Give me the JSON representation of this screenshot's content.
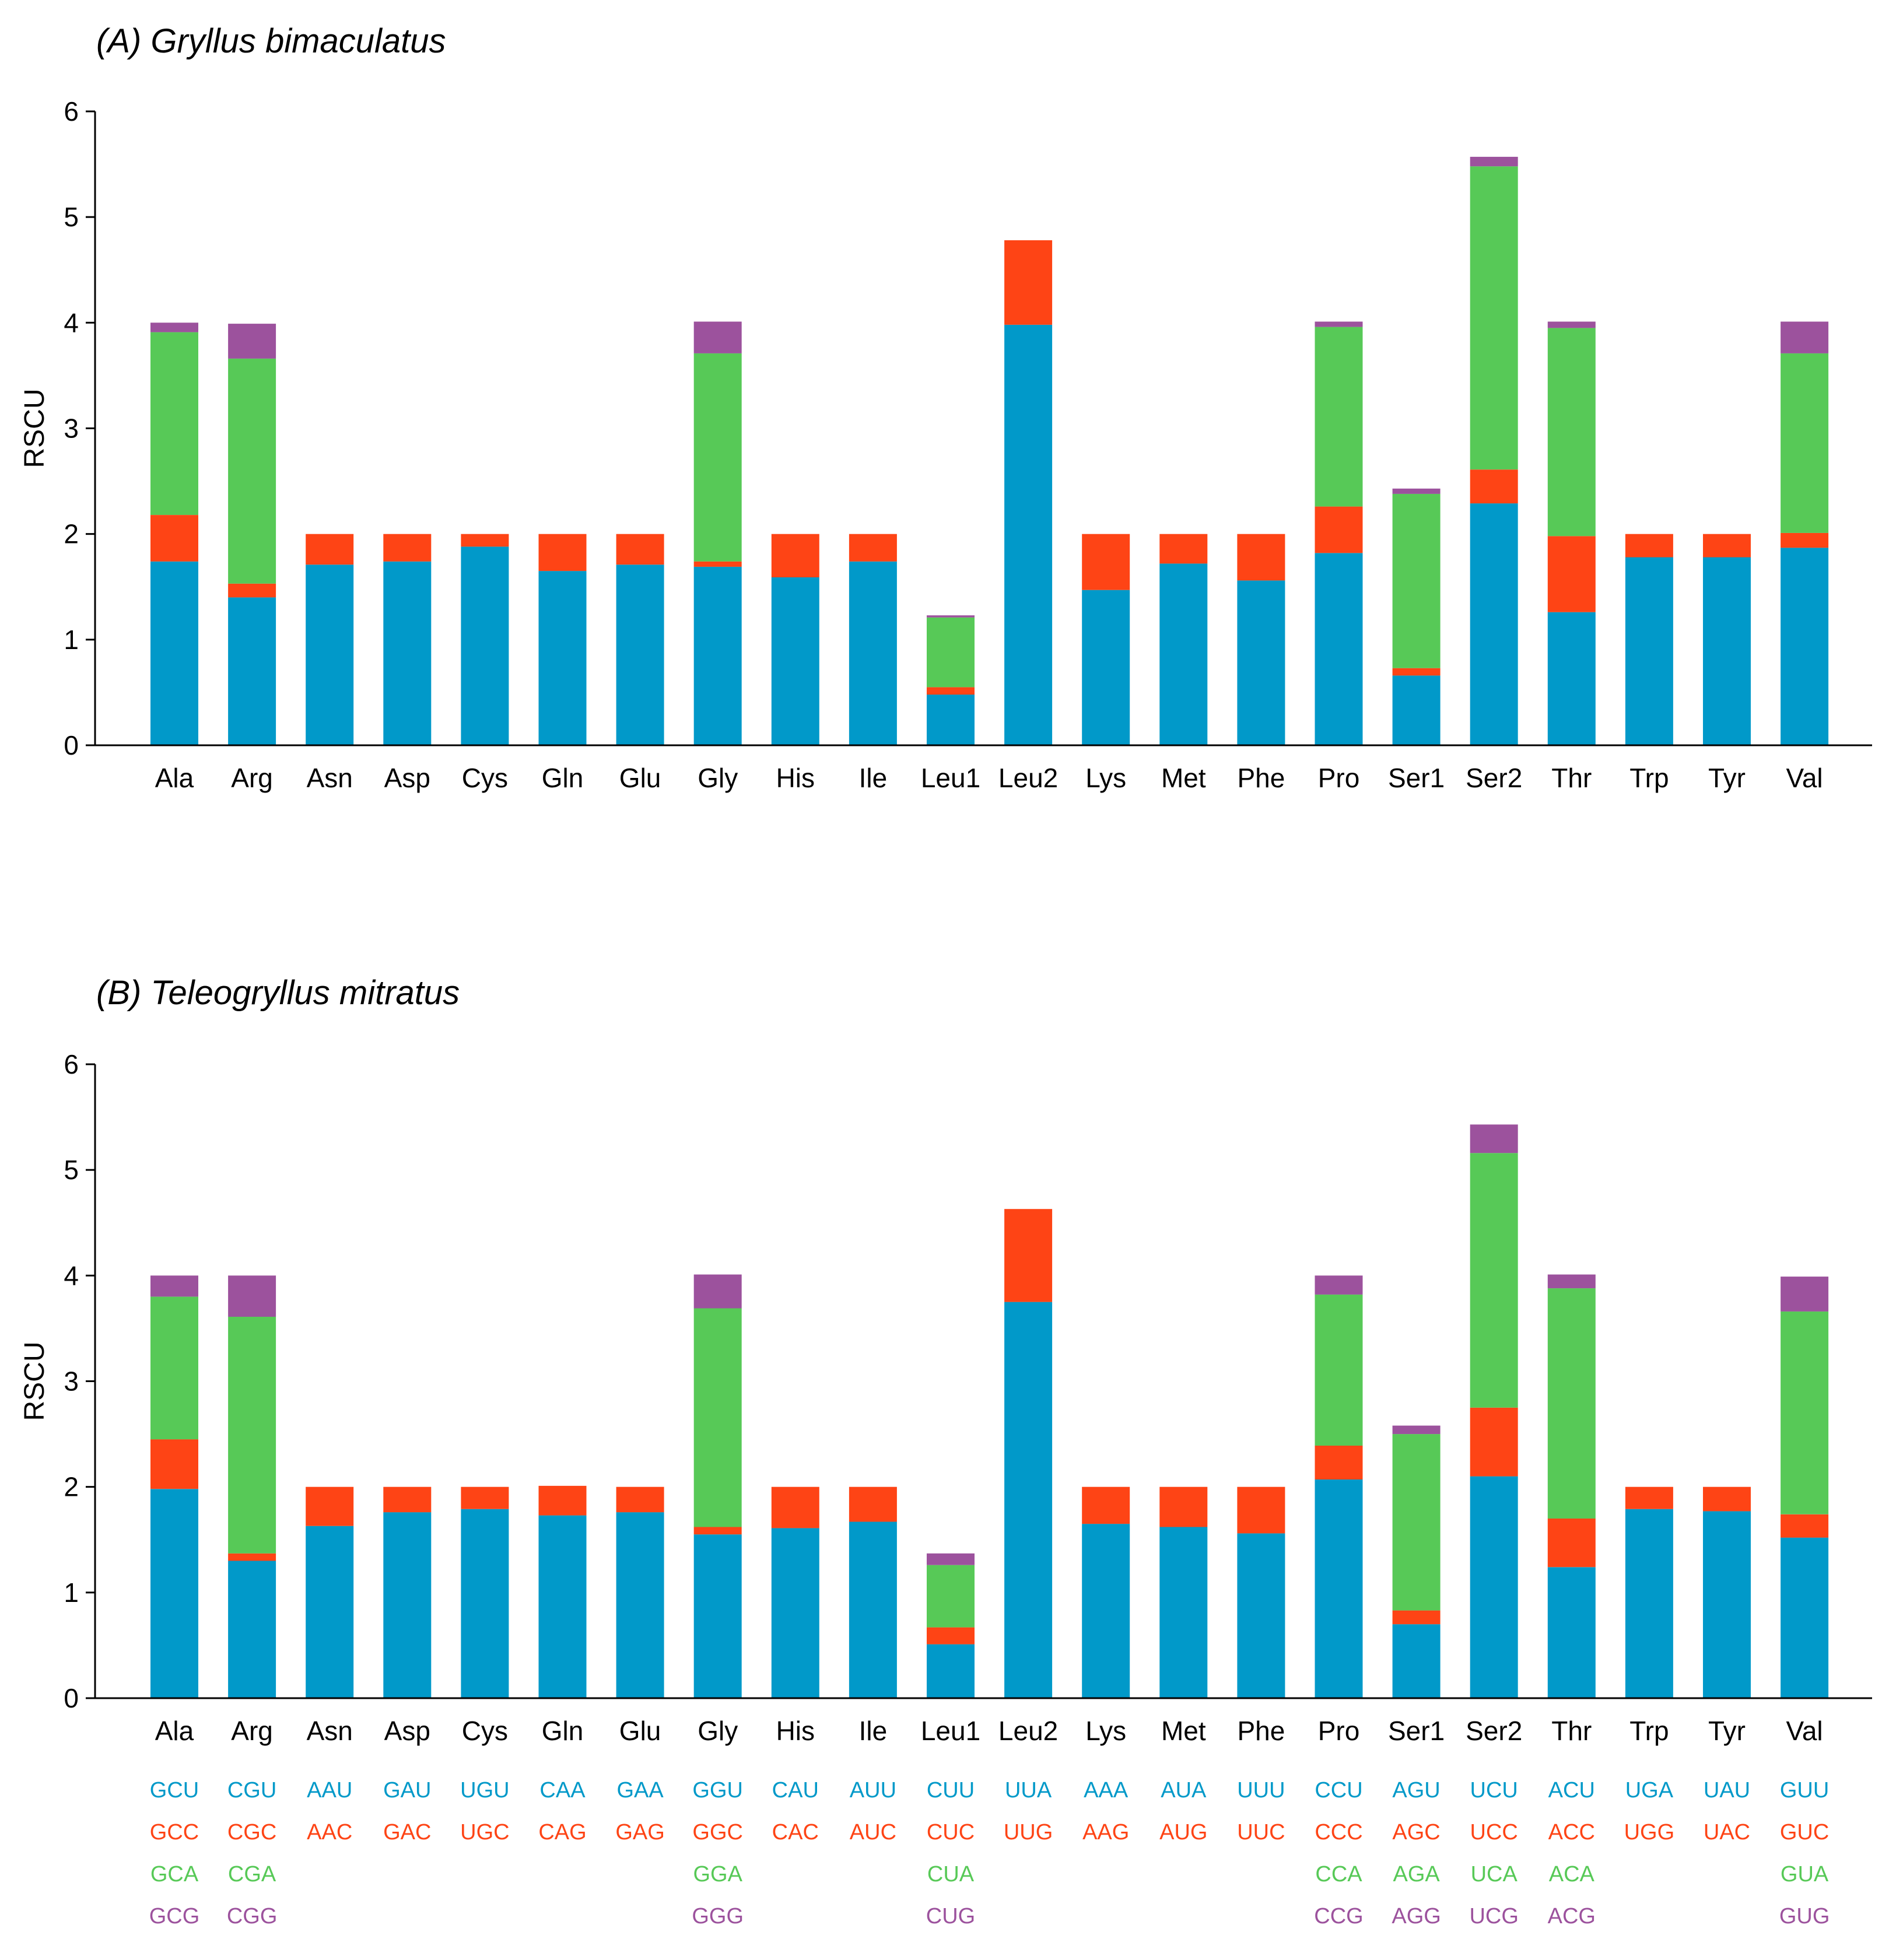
{
  "colors": {
    "blue": "#0199C9",
    "red": "#FE4415",
    "green": "#57C957",
    "purple": "#9C529D",
    "axis": "#000000"
  },
  "chart_data": [
    {
      "type": "bar",
      "stacked": true,
      "title": "(A) Gryllus bimaculatus",
      "ylabel": "RSCU",
      "xlabel": "",
      "ylim": [
        0,
        6
      ],
      "yticks": [
        "0",
        "1",
        "2",
        "3",
        "4",
        "5",
        "6"
      ],
      "grid": false,
      "categories": [
        "Ala",
        "Arg",
        "Asn",
        "Asp",
        "Cys",
        "Gln",
        "Glu",
        "Gly",
        "His",
        "Ile",
        "Leu1",
        "Leu2",
        "Lys",
        "Met",
        "Phe",
        "Pro",
        "Ser1",
        "Ser2",
        "Thr",
        "Trp",
        "Tyr",
        "Val"
      ],
      "series": [
        {
          "values": [
            1.74,
            1.4,
            1.71,
            1.74,
            1.88,
            1.65,
            1.71,
            1.69,
            1.59,
            1.74,
            0.48,
            3.98,
            1.47,
            1.72,
            1.56,
            1.82,
            0.66,
            2.29,
            1.26,
            1.78,
            1.78,
            1.87
          ]
        },
        {
          "values": [
            0.44,
            0.13,
            0.29,
            0.26,
            0.12,
            0.35,
            0.29,
            0.05,
            0.41,
            0.26,
            0.07,
            0.8,
            0.53,
            0.28,
            0.44,
            0.44,
            0.07,
            0.32,
            0.72,
            0.22,
            0.22,
            0.14
          ]
        },
        {
          "values": [
            1.73,
            2.13,
            0,
            0,
            0,
            0,
            0,
            1.97,
            0,
            0,
            0.66,
            0,
            0,
            0,
            0,
            1.7,
            1.65,
            2.87,
            1.97,
            0,
            0,
            1.7
          ]
        },
        {
          "values": [
            0.09,
            0.33,
            0,
            0,
            0,
            0,
            0,
            0.3,
            0,
            0,
            0.02,
            0,
            0,
            0,
            0,
            0.05,
            0.05,
            0.09,
            0.06,
            0,
            0,
            0.3
          ]
        }
      ]
    },
    {
      "type": "bar",
      "stacked": true,
      "title": "(B) Teleogryllus mitratus",
      "ylabel": "RSCU",
      "xlabel": "",
      "ylim": [
        0,
        6
      ],
      "yticks": [
        "0",
        "1",
        "2",
        "3",
        "4",
        "5",
        "6"
      ],
      "grid": false,
      "categories": [
        "Ala",
        "Arg",
        "Asn",
        "Asp",
        "Cys",
        "Gln",
        "Glu",
        "Gly",
        "His",
        "Ile",
        "Leu1",
        "Leu2",
        "Lys",
        "Met",
        "Phe",
        "Pro",
        "Ser1",
        "Ser2",
        "Thr",
        "Trp",
        "Tyr",
        "Val"
      ],
      "series": [
        {
          "values": [
            1.98,
            1.3,
            1.63,
            1.76,
            1.79,
            1.73,
            1.76,
            1.55,
            1.61,
            1.67,
            0.51,
            3.75,
            1.65,
            1.62,
            1.56,
            2.07,
            0.7,
            2.1,
            1.24,
            1.79,
            1.77,
            1.52
          ]
        },
        {
          "values": [
            0.47,
            0.07,
            0.37,
            0.24,
            0.21,
            0.28,
            0.24,
            0.07,
            0.39,
            0.33,
            0.16,
            0.88,
            0.35,
            0.38,
            0.44,
            0.32,
            0.13,
            0.65,
            0.46,
            0.21,
            0.23,
            0.22
          ]
        },
        {
          "values": [
            1.35,
            2.24,
            0,
            0,
            0,
            0,
            0,
            2.07,
            0,
            0,
            0.59,
            0,
            0,
            0,
            0,
            1.43,
            1.67,
            2.41,
            2.18,
            0,
            0,
            1.92
          ]
        },
        {
          "values": [
            0.2,
            0.39,
            0,
            0,
            0,
            0,
            0,
            0.32,
            0,
            0,
            0.11,
            0,
            0,
            0,
            0,
            0.18,
            0.08,
            0.27,
            0.13,
            0,
            0,
            0.33
          ]
        }
      ]
    }
  ],
  "codon_legend": {
    "rows": [
      {
        "color": "blue",
        "codons": [
          "GCU",
          "CGU",
          "AAU",
          "GAU",
          "UGU",
          "CAA",
          "GAA",
          "GGU",
          "CAU",
          "AUU",
          "CUU",
          "UUA",
          "AAA",
          "AUA",
          "UUU",
          "CCU",
          "AGU",
          "UCU",
          "ACU",
          "UGA",
          "UAU",
          "GUU"
        ]
      },
      {
        "color": "red",
        "codons": [
          "GCC",
          "CGC",
          "AAC",
          "GAC",
          "UGC",
          "CAG",
          "GAG",
          "GGC",
          "CAC",
          "AUC",
          "CUC",
          "UUG",
          "AAG",
          "AUG",
          "UUC",
          "CCC",
          "AGC",
          "UCC",
          "ACC",
          "UGG",
          "UAC",
          "GUC"
        ]
      },
      {
        "color": "green",
        "codons": [
          "GCA",
          "CGA",
          "",
          "",
          "",
          "",
          "",
          "GGA",
          "",
          "",
          "CUA",
          "",
          "",
          "",
          "",
          "CCA",
          "AGA",
          "UCA",
          "ACA",
          "",
          "",
          "GUA"
        ]
      },
      {
        "color": "purple",
        "codons": [
          "GCG",
          "CGG",
          "",
          "",
          "",
          "",
          "",
          "GGG",
          "",
          "",
          "CUG",
          "",
          "",
          "",
          "",
          "CCG",
          "AGG",
          "UCG",
          "ACG",
          "",
          "",
          "GUG"
        ]
      }
    ]
  }
}
